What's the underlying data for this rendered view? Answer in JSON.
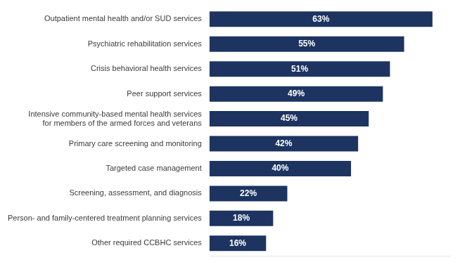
{
  "chart_data": {
    "type": "bar",
    "orientation": "horizontal",
    "categories": [
      "Other required CCBHC services",
      "Person- and family-centered treatment planning services",
      "Screening, assessment, and diagnosis",
      "Targeted case management",
      "Primary care screening and monitoring",
      "Intensive community-based mental health services\nfor members of the armed forces and veterans",
      "Peer support services",
      "Crisis behavioral health services",
      "Psychiatric rehabilitation services",
      "Outpatient mental health and/or SUD services"
    ],
    "values": [
      16,
      18,
      22,
      40,
      42,
      45,
      49,
      51,
      55,
      63
    ],
    "value_labels": [
      "16%",
      "18%",
      "22%",
      "40%",
      "42%",
      "45%",
      "49%",
      "51%",
      "55%",
      "63%"
    ],
    "data_labels": true,
    "color": "#1d3461",
    "xlim": [
      0,
      68
    ],
    "tick_labels": "y",
    "grid": false,
    "legend": false
  }
}
